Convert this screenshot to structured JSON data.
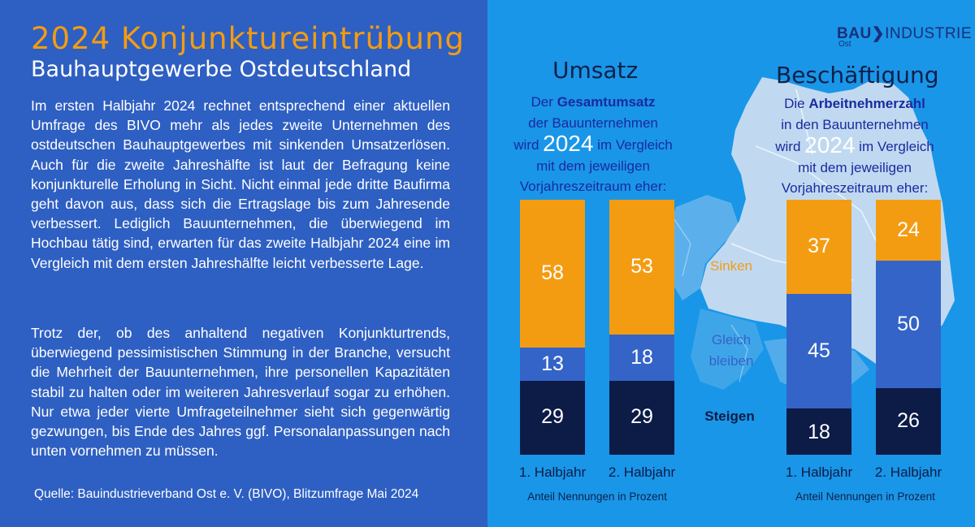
{
  "left": {
    "title": "2024 Konjunktureintrübung",
    "subtitle": "Bauhauptgewerbe Ostdeutschland",
    "paragraph1": "Im ersten Halbjahr 2024 rechnet entsprechend einer aktuellen Umfrage des BIVO mehr als jedes zweite Unternehmen des ostdeutschen Bauhauptgewerbes mit sinkenden Umsatzerlösen. Auch für die zweite Jahreshälfte ist laut der Befragung keine konjunkturelle Erholung in Sicht. Nicht einmal jede dritte Baufirma geht davon aus, dass sich die Ertragslage bis zum Jahresende verbessert. Lediglich Bauunternehmen, die überwiegend im Hochbau tätig sind, erwarten für das zweite Halbjahr 2024 eine im Vergleich mit dem ersten Jahreshälfte leicht verbesserte Lage.",
    "paragraph2": "Trotz der, ob des anhaltend negativen Konjunkturtrends, überwiegend pessimistischen Stimmung in der Branche, versucht die Mehrheit der Bauunternehmen, ihre personellen Kapazitäten stabil zu halten oder im weiteren Jahresverlauf sogar zu erhöhen. Nur etwa jeder vierte Umfrageteilnehmer sieht sich gegenwärtig gezwungen, bis Ende des Jahres ggf. Personalanpassungen nach unten vornehmen zu müssen.",
    "source": "Quelle: Bauindustrieverband Ost e. V. (BIVO), Blitzumfrage Mai  2024"
  },
  "logo": {
    "bold": "BAU",
    "rest": "INDUSTRIE",
    "sub": "Ost"
  },
  "umsatz": {
    "title": "Umsatz",
    "q_pre": "Der ",
    "q_bold": "Gesamtumsatz",
    "q_line2": "der Bauunternehmen",
    "q_wird": "wird ",
    "q_year": "2024",
    "q_rest": " im Vergleich",
    "q_line4": "mit dem jeweiligen",
    "q_line5": "Vorjahreszeitraum  eher:",
    "note": "Anteil Nennungen in Prozent"
  },
  "besch": {
    "title": "Beschäftigung",
    "q_pre": "Die ",
    "q_bold": "Arbeitnehmerzahl",
    "q_line2": "in den Bauunternehmen",
    "q_wird": "wird ",
    "q_year": "2024",
    "q_rest": " im Vergleich",
    "q_line4": "mit dem jeweiligen",
    "q_line5": "Vorjahreszeitraum eher:",
    "note": "Anteil Nennungen in Prozent"
  },
  "categories_labels": {
    "sinken": "Sinken",
    "gleich_1": "Gleich",
    "gleich_2": "bleiben",
    "steigen": "Steigen"
  },
  "chart_data": [
    {
      "type": "bar",
      "stacked": true,
      "title": "Umsatz",
      "categories": [
        "1. Halbjahr",
        "2. Halbjahr"
      ],
      "series": [
        {
          "name": "Steigen",
          "values": [
            29,
            29
          ]
        },
        {
          "name": "Gleich bleiben",
          "values": [
            13,
            18
          ]
        },
        {
          "name": "Sinken",
          "values": [
            58,
            53
          ]
        }
      ],
      "ylim": [
        0,
        100
      ]
    },
    {
      "type": "bar",
      "stacked": true,
      "title": "Beschäftigung",
      "categories": [
        "1. Halbjahr",
        "2. Halbjahr"
      ],
      "series": [
        {
          "name": "Steigen",
          "values": [
            18,
            26
          ]
        },
        {
          "name": "Gleich bleiben",
          "values": [
            45,
            50
          ]
        },
        {
          "name": "Sinken",
          "values": [
            37,
            24
          ]
        }
      ],
      "ylim": [
        0,
        100
      ]
    }
  ],
  "colors": {
    "sinken": "#f39c12",
    "gleich": "#3464c7",
    "steigen": "#0d1b47",
    "left_bg": "#2e5fc2",
    "right_bg": "#1996e8"
  }
}
